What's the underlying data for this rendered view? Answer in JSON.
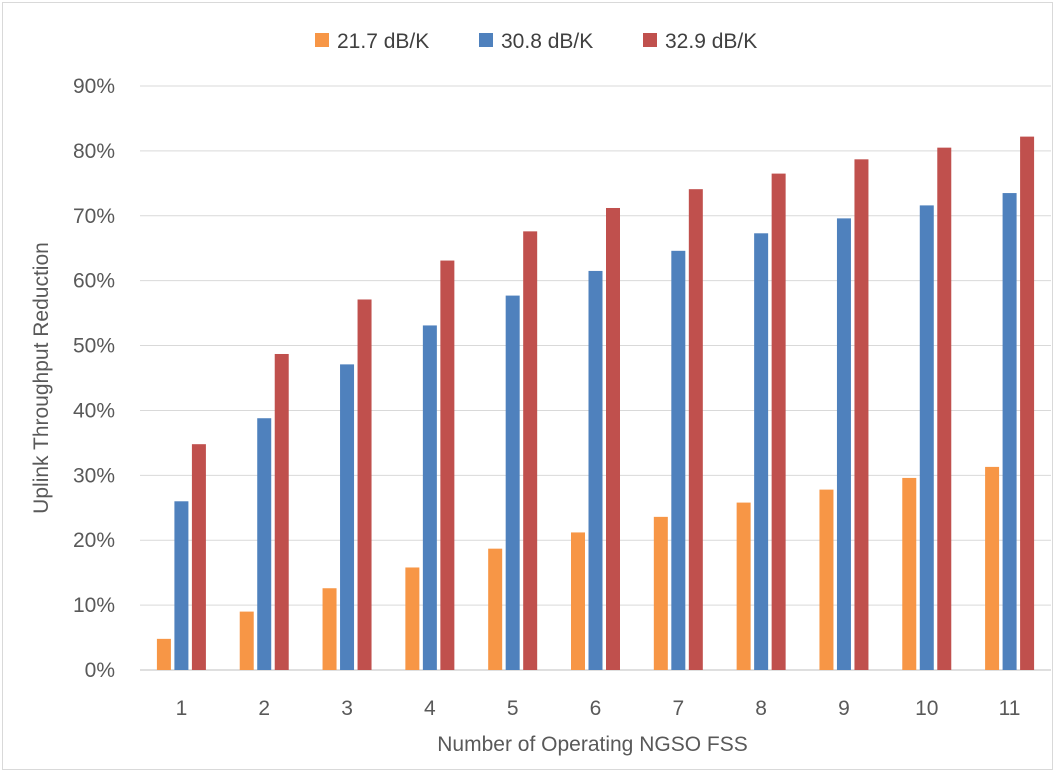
{
  "chart_data": {
    "type": "bar",
    "title": "",
    "xlabel": "Number of Operating NGSO FSS",
    "ylabel": "Uplink Throughput Reduction",
    "ylim": [
      0,
      90
    ],
    "ytick_step": 10,
    "ytick_suffix": "%",
    "grid": true,
    "legend_position": "top",
    "categories": [
      "1",
      "2",
      "3",
      "4",
      "5",
      "6",
      "7",
      "8",
      "9",
      "10",
      "11"
    ],
    "series": [
      {
        "name": "21.7 dB/K",
        "color": "#f79646",
        "values": [
          4.8,
          9.0,
          12.6,
          15.8,
          18.7,
          21.2,
          23.6,
          25.8,
          27.8,
          29.6,
          31.3
        ]
      },
      {
        "name": "30.8 dB/K",
        "color": "#4f81bd",
        "values": [
          26.0,
          38.8,
          47.1,
          53.1,
          57.7,
          61.5,
          64.6,
          67.3,
          69.6,
          71.6,
          73.5
        ]
      },
      {
        "name": "32.9 dB/K",
        "color": "#c0504d",
        "values": [
          34.8,
          48.7,
          57.1,
          63.1,
          67.6,
          71.2,
          74.1,
          76.5,
          78.7,
          80.5,
          82.2
        ]
      }
    ]
  }
}
